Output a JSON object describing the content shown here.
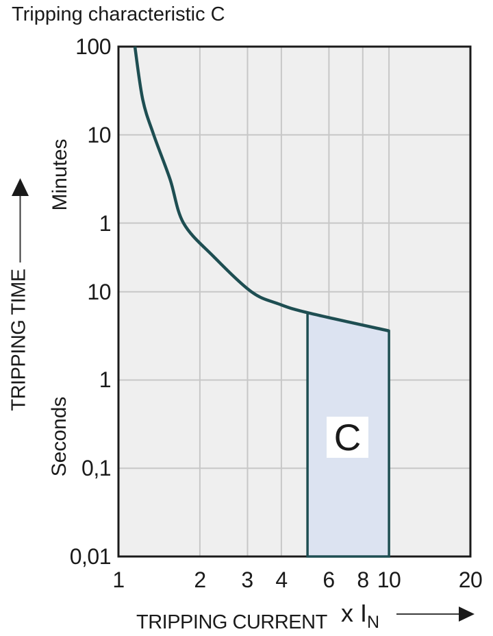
{
  "colors": {
    "curve": "#1e4e52",
    "zone_fill": "#dce3f1",
    "plot_bg": "#efefef",
    "grid": "#c7c7c7",
    "axis": "#1a1a1a",
    "text": "#1a1a1a",
    "zone_label_bg": "#ffffff"
  },
  "chart_data": {
    "type": "line",
    "title": "Tripping characteristic C",
    "xlabel": "TRIPPING CURRENT",
    "x_multiplier": "x I",
    "x_multiplier_sub": "N",
    "ylabel": "TRIPPING TIME",
    "y_unit_top": "Minutes",
    "y_unit_bottom": "Seconds",
    "x_scale": "log",
    "y_scale": "log",
    "x_range": [
      1,
      20
    ],
    "y_range_seconds": [
      0.01,
      6000
    ],
    "x_ticks": [
      {
        "label": "1",
        "v": 1
      },
      {
        "label": "2",
        "v": 2
      },
      {
        "label": "3",
        "v": 3
      },
      {
        "label": "4",
        "v": 4
      },
      {
        "label": "6",
        "v": 6
      },
      {
        "label": "8",
        "v": 8
      },
      {
        "label": "10",
        "v": 10
      },
      {
        "label": "20",
        "v": 20
      }
    ],
    "y_ticks": [
      {
        "label": "100",
        "t": 6000
      },
      {
        "label": "10",
        "t": 600
      },
      {
        "label": "1",
        "t": 60
      },
      {
        "label": "10",
        "t": 10
      },
      {
        "label": "1",
        "t": 1
      },
      {
        "label": "0,1",
        "t": 0.1
      },
      {
        "label": "0,01",
        "t": 0.01
      }
    ],
    "x_gridlines": [
      2,
      3,
      4,
      6,
      8,
      10
    ],
    "y_gridlines_seconds": [
      600,
      60,
      10,
      1,
      0.1
    ],
    "curve": {
      "name": "C tripping characteristic curve",
      "points_x_t_seconds": [
        [
          1.15,
          6000
        ],
        [
          1.23,
          1500
        ],
        [
          1.35,
          600
        ],
        [
          1.55,
          190
        ],
        [
          1.74,
          60
        ],
        [
          2.25,
          25
        ],
        [
          3.1,
          10
        ],
        [
          3.9,
          7.3
        ],
        [
          5.0,
          5.8
        ],
        [
          10.0,
          3.6
        ]
      ]
    },
    "instantaneous_trip_zone": {
      "label": "C",
      "x_from": 5,
      "x_to": 10,
      "t_top_from_seconds": 5.8,
      "t_top_to_seconds": 3.6,
      "t_bottom_seconds": 0.01
    }
  }
}
